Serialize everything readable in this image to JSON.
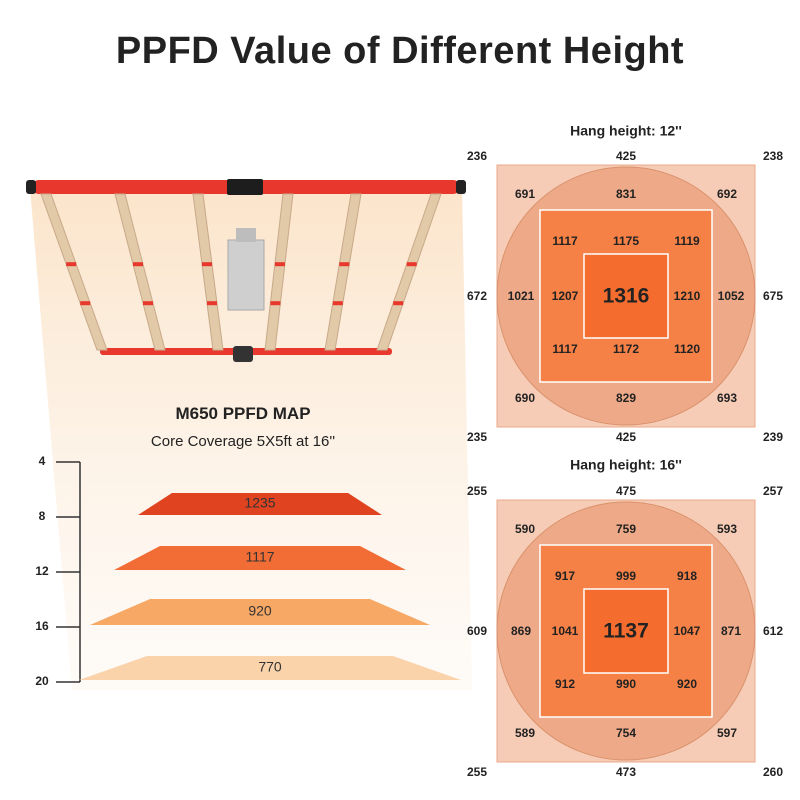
{
  "title": "PPFD Value of Different Height",
  "colors": {
    "outer_square": "#f7ccb6",
    "circle": "#eeaa88",
    "mid_square": "#f58146",
    "center_square": "#f46d2e",
    "fixture_frame": "#e8372c",
    "led_bar": "#e2c9a8",
    "glow": "#fbe8d2"
  },
  "product": {
    "map_title": "M650 PPFD MAP",
    "coverage": "Core Coverage 5X5ft at 16''"
  },
  "height_scale": {
    "ticks": [
      "4",
      "8",
      "12",
      "16",
      "20"
    ],
    "slices": [
      {
        "value": "1235",
        "height": 8,
        "color": "#e0431f"
      },
      {
        "value": "1117",
        "height": 12,
        "color": "#f26c35"
      },
      {
        "value": "920",
        "height": 16,
        "color": "#f8a865"
      },
      {
        "value": "770",
        "height": 20,
        "color": "#fad3ab"
      }
    ]
  },
  "maps": [
    {
      "label": "Hang height: 12''",
      "corners": {
        "top_left": "236",
        "top_right": "238",
        "bottom_left": "235",
        "bottom_right": "239"
      },
      "edges": {
        "top": "425",
        "bottom": "425",
        "left": "672",
        "right": "675"
      },
      "circle": {
        "top_left": "691",
        "top": "831",
        "top_right": "692",
        "left": "1021",
        "right": "1052",
        "bottom_left": "690",
        "bottom": "829",
        "bottom_right": "693"
      },
      "inner": {
        "top_left": "1117",
        "top": "1175",
        "top_right": "1119",
        "left": "1207",
        "right": "1210",
        "bottom_left": "1117",
        "bottom": "1172",
        "bottom_right": "1120"
      },
      "center": "1316"
    },
    {
      "label": "Hang height: 16''",
      "corners": {
        "top_left": "255",
        "top_right": "257",
        "bottom_left": "255",
        "bottom_right": "260"
      },
      "edges": {
        "top": "475",
        "bottom": "473",
        "left": "609",
        "right": "612"
      },
      "circle": {
        "top_left": "590",
        "top": "759",
        "top_right": "593",
        "left": "869",
        "right": "871",
        "bottom_left": "589",
        "bottom": "754",
        "bottom_right": "597"
      },
      "inner": {
        "top_left": "917",
        "top": "999",
        "top_right": "918",
        "left": "1041",
        "right": "1047",
        "bottom_left": "912",
        "bottom": "990",
        "bottom_right": "920"
      },
      "center": "1137"
    }
  ]
}
